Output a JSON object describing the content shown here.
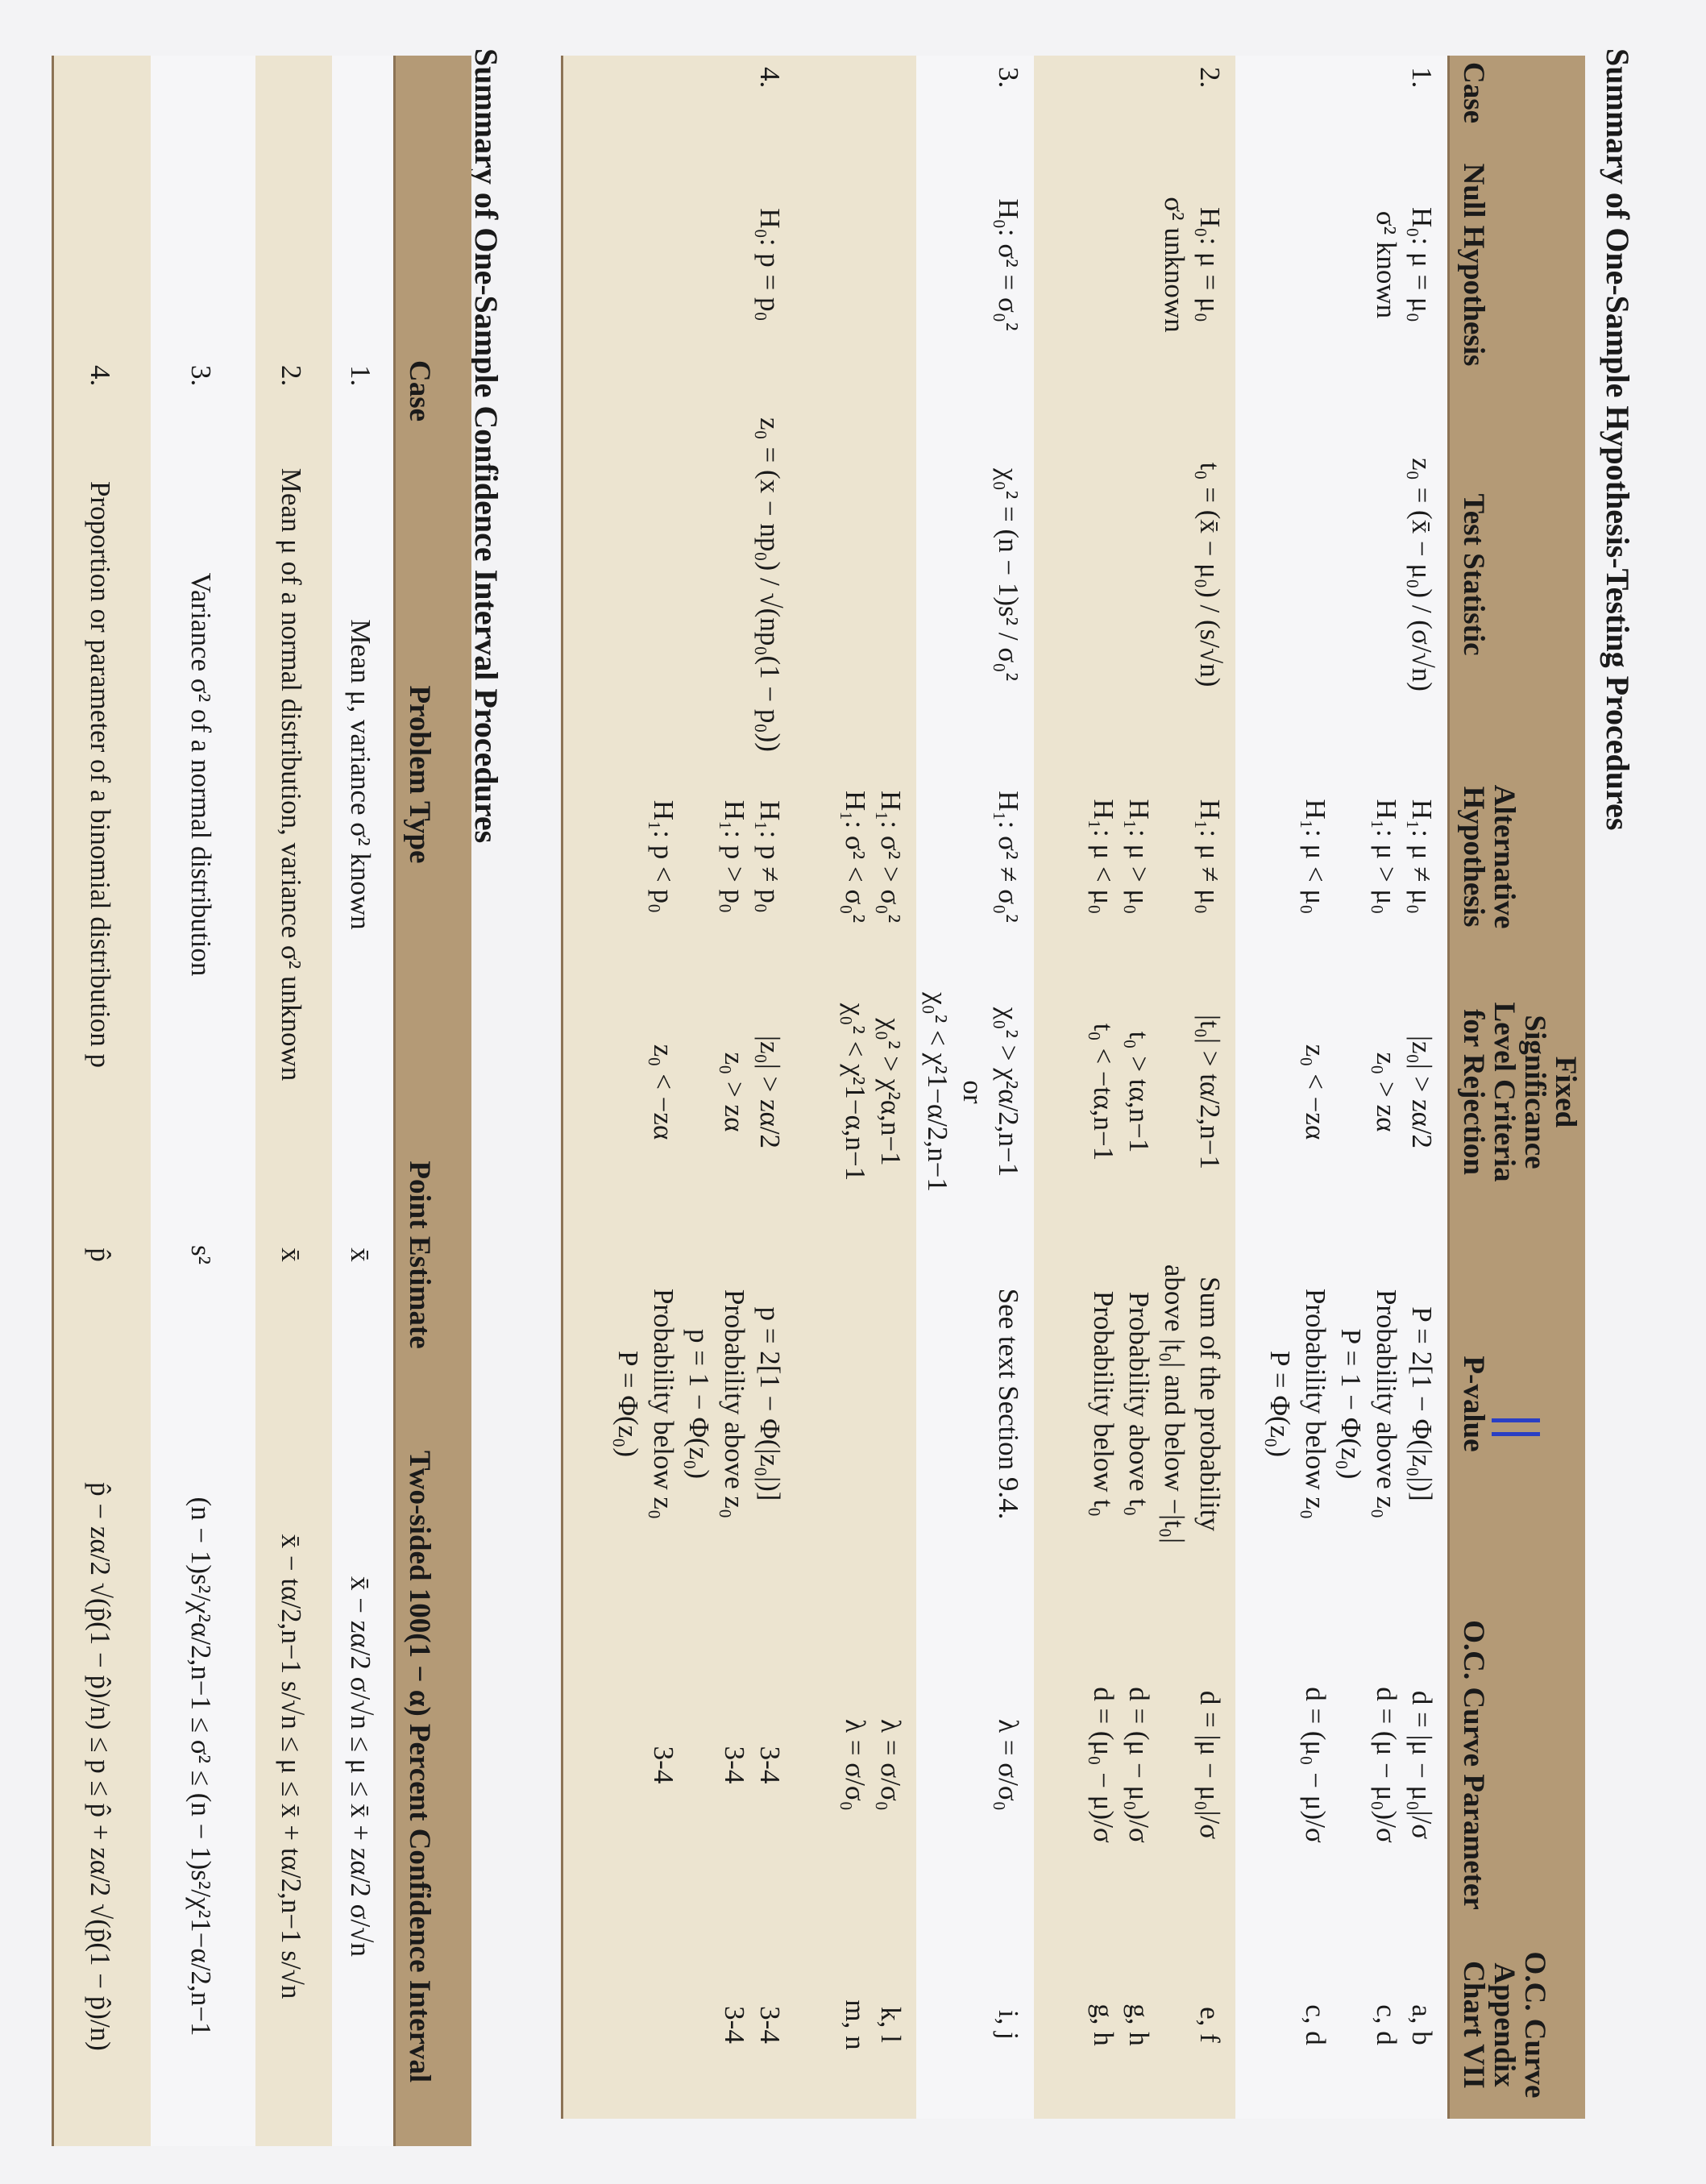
{
  "hypothesis_table": {
    "title": "Summary of One-Sample Hypothesis-Testing Procedures",
    "headers": [
      "Case",
      "Null Hypothesis",
      "Test Statistic",
      "Alternative Hypothesis",
      "Fixed Significance Level Criteria for Rejection",
      "P-value",
      "O.C. Curve Parameter",
      "O.C. Curve Appendix Chart VII"
    ],
    "rows": [
      {
        "case": "1.",
        "null": [
          "H₀: μ = μ₀",
          "σ² known"
        ],
        "statistic": [
          "z₀ = (x̄ − μ₀) / (σ/√n)"
        ],
        "alternative": [
          "H₁: μ ≠ μ₀",
          "H₁: μ > μ₀",
          "",
          "H₁: μ < μ₀"
        ],
        "criteria": [
          "|z₀| > zα/2",
          "z₀ > zα",
          "",
          "z₀ < −zα"
        ],
        "p_value": [
          "P = 2[1 − Φ(|z₀|)]",
          "Probability above z₀",
          "P = 1 − Φ(z₀)",
          "Probability below z₀",
          "P = Φ(z₀)"
        ],
        "oc_parameter": [
          "d = |μ − μ₀|/σ",
          "d = (μ − μ₀)/σ",
          "",
          "d = (μ₀ − μ)/σ"
        ],
        "chart": [
          "a, b",
          "c, d",
          "",
          "c, d"
        ]
      },
      {
        "case": "2.",
        "null": [
          "H₀: μ = μ₀",
          "σ² unknown"
        ],
        "statistic": [
          "t₀ = (x̄ − μ₀) / (s/√n)"
        ],
        "alternative": [
          "H₁: μ ≠ μ₀",
          "",
          "H₁: μ > μ₀",
          "H₁: μ < μ₀"
        ],
        "criteria": [
          "|t₀| > tα/2,n−1",
          "",
          "t₀ > tα,n−1",
          "t₀ < −tα,n−1"
        ],
        "p_value": [
          "Sum of the probability",
          "above |t₀| and below −|t₀|",
          "Probability above t₀",
          "Probability below t₀"
        ],
        "oc_parameter": [
          "d = |μ − μ₀|/σ",
          "",
          "d = (μ − μ₀)/σ",
          "d = (μ₀ − μ)/σ"
        ],
        "chart": [
          "e, f",
          "",
          "g, h",
          "g, h"
        ]
      },
      {
        "case": "3.",
        "null": [
          "H₀: σ² = σ₀²"
        ],
        "statistic": [
          "χ₀² = (n − 1)s² / σ₀²"
        ],
        "alternative": [
          "H₁: σ² ≠ σ₀²"
        ],
        "criteria": [
          "χ₀² > χ²α/2,n−1",
          "or",
          "χ₀² < χ²1−α/2,n−1"
        ],
        "p_value": [
          "See text Section 9.4."
        ],
        "oc_parameter": [
          "λ = σ/σ₀"
        ],
        "chart": [
          "i, j"
        ]
      },
      {
        "case": "",
        "null": [],
        "statistic": [],
        "alternative": [
          "H₁: σ² > σ₀²",
          "H₁: σ² < σ₀²"
        ],
        "criteria": [
          "χ₀² > χ²α,n−1",
          "χ₀² < χ²1−α,n−1"
        ],
        "p_value": [],
        "oc_parameter": [
          "λ = σ/σ₀",
          "λ = σ/σ₀"
        ],
        "chart": [
          "k, l",
          "m, n"
        ]
      },
      {
        "case": "4.",
        "null": [
          "H₀: p = p₀"
        ],
        "statistic": [
          "z₀ = (x − np₀) / √(np₀(1 − p₀))"
        ],
        "alternative": [
          "H₁: p ≠ p₀",
          "H₁: p > p₀",
          "",
          "H₁: p < p₀"
        ],
        "criteria": [
          "|z₀| > zα/2",
          "z₀ > zα",
          "",
          "z₀ < −zα"
        ],
        "p_value": [
          "p = 2[1 − Φ(|z₀|)]",
          "Probability above z₀",
          "p = 1 − Φ(z₀)",
          "Probability below z₀",
          "P = Φ(z₀)"
        ],
        "oc_parameter": [
          "3-4",
          "3-4",
          "",
          "3-4"
        ],
        "chart": [
          "3-4",
          "3-4"
        ]
      }
    ]
  },
  "interval_table": {
    "title": "Summary of One-Sample Confidence Interval Procedures",
    "headers": [
      "Case",
      "Problem Type",
      "Point Estimate",
      "Two-sided 100(1 − α) Percent Confidence Interval"
    ],
    "rows": [
      {
        "case": "1.",
        "problem": "Mean μ, variance σ² known",
        "estimate": "x̄",
        "interval": "x̄ − zα/2 σ/√n ≤ μ ≤ x̄ + zα/2 σ/√n"
      },
      {
        "case": "2.",
        "problem": "Mean μ of a normal distribution, variance σ² unknown",
        "estimate": "x̄",
        "interval": "x̄ − tα/2,n−1 s/√n ≤ μ ≤ x̄ + tα/2,n−1 s/√n"
      },
      {
        "case": "3.",
        "problem": "Variance σ² of a normal distribution",
        "estimate": "s²",
        "interval": "(n − 1)s²/χ²α/2,n−1 ≤ σ² ≤ (n − 1)s²/χ²1−α/2,n−1"
      },
      {
        "case": "4.",
        "problem": "Proportion or parameter of a binomial distribution p",
        "estimate": "p̂",
        "interval": "p̂ − zα/2 √(p̂(1 − p̂)/n) ≤ p ≤ p̂ + zα/2 √(p̂(1 − p̂)/n)"
      }
    ]
  },
  "colors": {
    "header": "#b49a76",
    "band": "#ece4d0",
    "paper": "#f6f6f8",
    "pen_mark": "#2a3fc4"
  }
}
